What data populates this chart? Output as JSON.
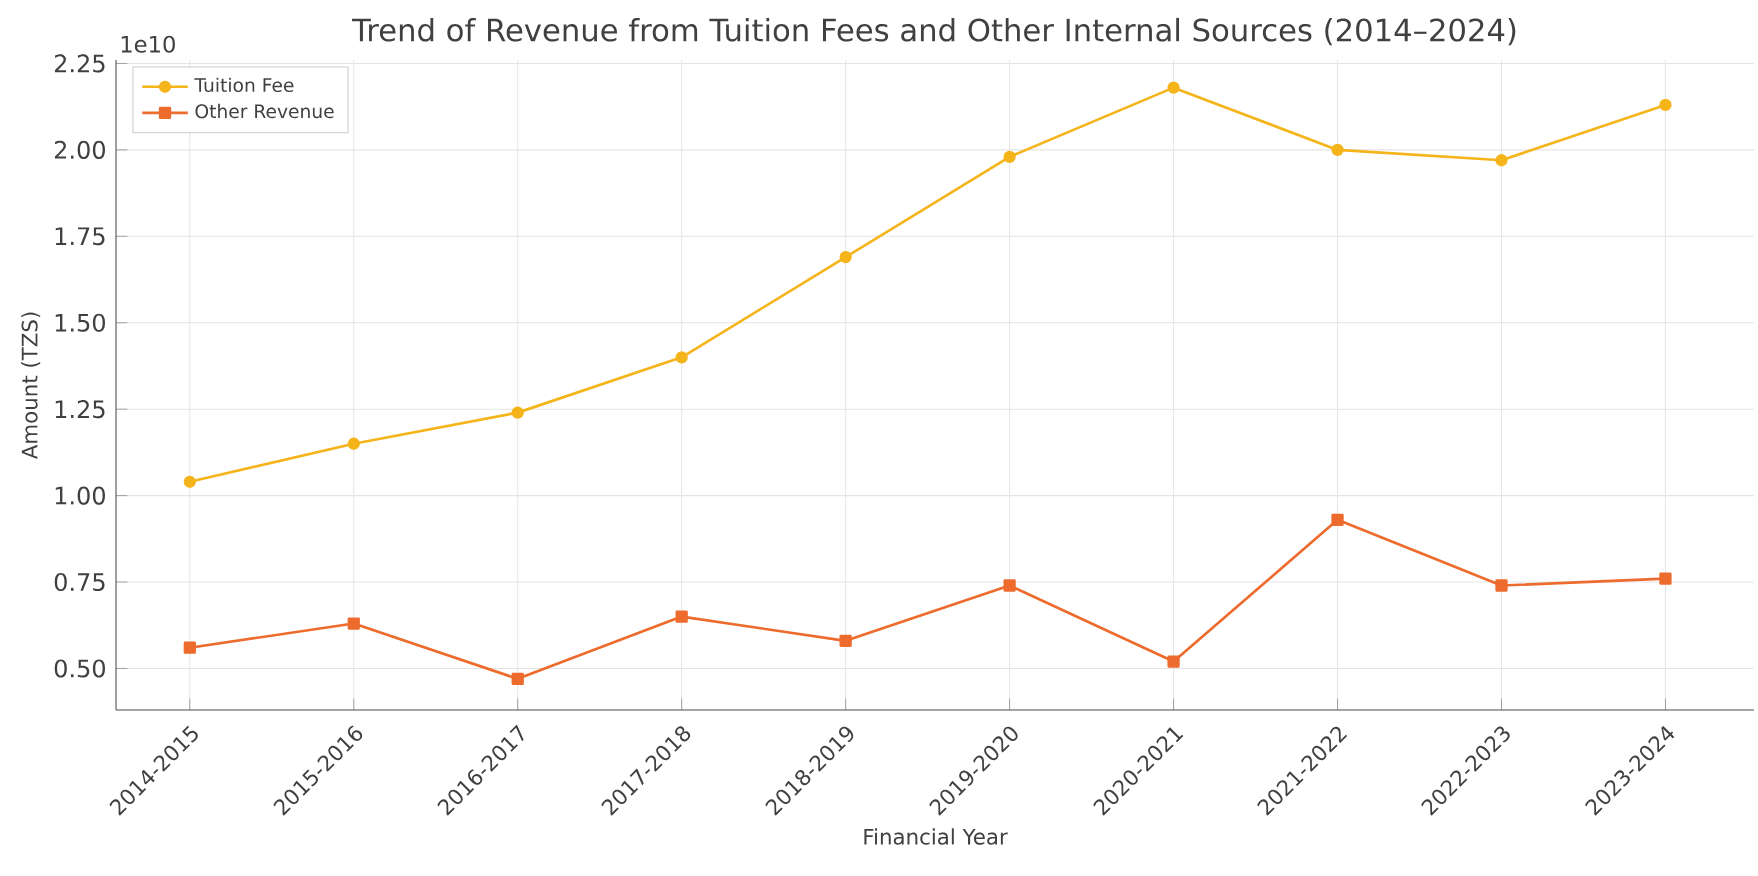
{
  "chart_data": {
    "type": "line",
    "title": "Trend of Revenue from Tuition Fees and Other Internal Sources (2014–2024)",
    "xlabel": "Financial Year",
    "ylabel": "Amount (TZS)",
    "annotations": [
      "1e10"
    ],
    "categories": [
      "2014-2015",
      "2015-2016",
      "2016-2017",
      "2017-2018",
      "2018-2019",
      "2019-2020",
      "2020-2021",
      "2021-2022",
      "2022-2023",
      "2023-2024"
    ],
    "series": [
      {
        "name": "Tuition Fee",
        "color": "#f4b41a",
        "marker": "circle",
        "values": [
          1.04,
          1.15,
          1.24,
          1.4,
          1.69,
          1.98,
          2.18,
          2.0,
          1.97,
          2.13
        ]
      },
      {
        "name": "Other Revenue",
        "color": "#ec6b2d",
        "marker": "square",
        "values": [
          0.56,
          0.63,
          0.47,
          0.65,
          0.58,
          0.74,
          0.52,
          0.93,
          0.74,
          0.76
        ]
      }
    ],
    "ylim": [
      0.38,
      2.26
    ],
    "yticks": [
      {
        "value": 0.5,
        "label": "0.50"
      },
      {
        "value": 0.75,
        "label": "0.75"
      },
      {
        "value": 1.0,
        "label": "1.00"
      },
      {
        "value": 1.25,
        "label": "1.25"
      },
      {
        "value": 1.5,
        "label": "1.50"
      },
      {
        "value": 1.75,
        "label": "1.75"
      },
      {
        "value": 2.0,
        "label": "2.00"
      },
      {
        "value": 2.25,
        "label": "2.25"
      }
    ],
    "grid": true,
    "legend": "top left",
    "line_style": "solid"
  }
}
